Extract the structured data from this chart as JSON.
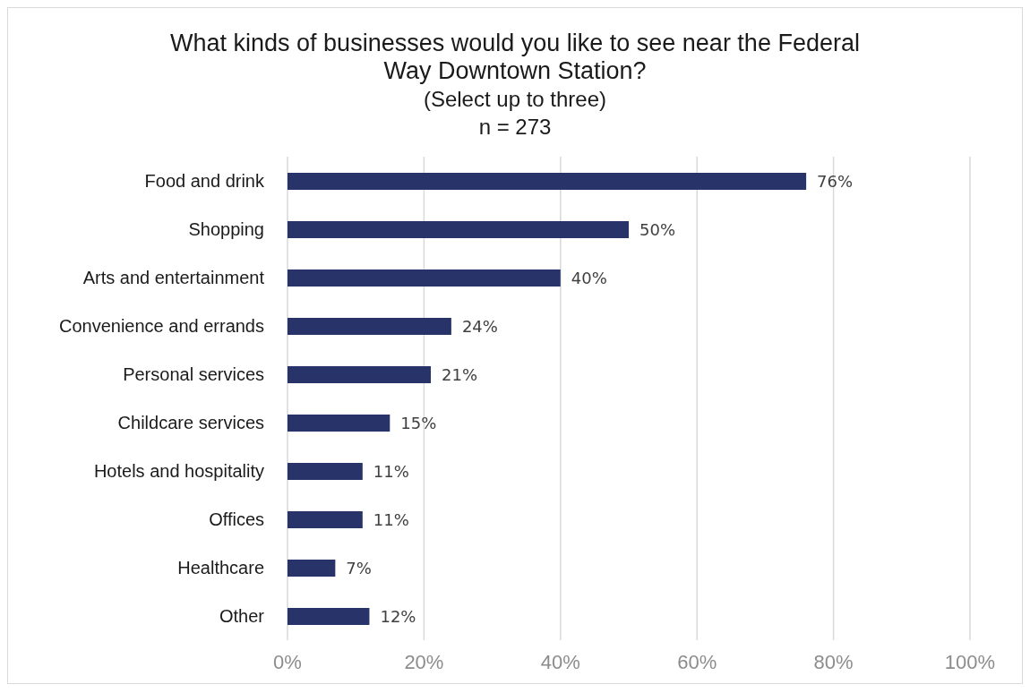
{
  "chart_data": {
    "type": "bar",
    "orientation": "horizontal",
    "title": "What kinds of businesses would you like to see near the Federal Way Downtown Station?",
    "subtitle": "(Select up to three)",
    "annotations": [
      "n = 273"
    ],
    "categories": [
      "Food and drink",
      "Shopping",
      "Arts and entertainment",
      "Convenience and errands",
      "Personal services",
      "Childcare services",
      "Hotels and hospitality",
      "Offices",
      "Healthcare",
      "Other"
    ],
    "values": [
      76,
      50,
      40,
      24,
      21,
      15,
      11,
      11,
      7,
      12
    ],
    "value_labels": [
      "76%",
      "50%",
      "40%",
      "24%",
      "21%",
      "15%",
      "11%",
      "11%",
      "7%",
      "12%"
    ],
    "color": "#283469",
    "xlim": [
      0,
      100
    ],
    "xticks": [
      {
        "value": 0,
        "label": "0%"
      },
      {
        "value": 20,
        "label": "20%"
      },
      {
        "value": 40,
        "label": "40%"
      },
      {
        "value": 60,
        "label": "60%"
      },
      {
        "value": 80,
        "label": "80%"
      },
      {
        "value": 100,
        "label": "100%"
      }
    ],
    "grid": "x"
  }
}
